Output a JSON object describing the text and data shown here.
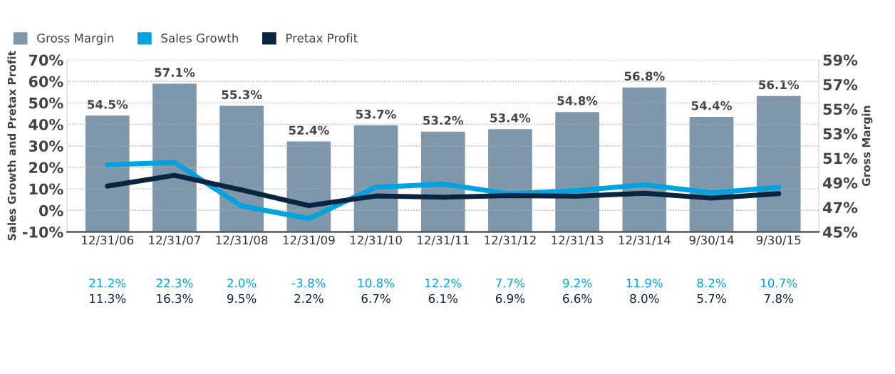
{
  "chart_data": {
    "type": "bar",
    "ylabel": "Sales Growth and Pretax Profit",
    "y2label": "Gross Margin",
    "categories": [
      "12/31/06",
      "12/31/07",
      "12/31/08",
      "12/31/09",
      "12/31/10",
      "12/31/11",
      "12/31/12",
      "12/31/13",
      "12/31/14",
      "9/30/14",
      "9/30/15"
    ],
    "series": [
      {
        "name": "Gross Margin",
        "axis": "y2",
        "color": "#7f97aa",
        "values": [
          54.5,
          57.1,
          55.3,
          52.4,
          53.7,
          53.2,
          53.4,
          54.8,
          56.8,
          54.4,
          56.1
        ],
        "value_labels": [
          "54.5%",
          "57.1%",
          "55.3%",
          "52.4%",
          "53.7%",
          "53.2%",
          "53.4%",
          "54.8%",
          "56.8%",
          "54.4%",
          "56.1%"
        ]
      },
      {
        "name": "Sales Growth",
        "type": "line",
        "color": "#00a3e0",
        "values": [
          21.2,
          22.3,
          2.0,
          -3.8,
          10.8,
          12.2,
          7.7,
          9.2,
          11.9,
          8.2,
          10.7
        ],
        "value_labels": [
          "21.2%",
          "22.3%",
          "2.0%",
          "-3.8%",
          "10.8%",
          "12.2%",
          "7.7%",
          "9.2%",
          "11.9%",
          "8.2%",
          "10.7%"
        ]
      },
      {
        "name": "Pretax Profit",
        "type": "line",
        "color": "#0a2540",
        "values": [
          11.3,
          16.3,
          9.5,
          2.2,
          6.7,
          6.1,
          6.9,
          6.6,
          8.0,
          5.7,
          7.8
        ],
        "value_labels": [
          "11.3%",
          "16.3%",
          "9.5%",
          "2.2%",
          "6.7%",
          "6.1%",
          "6.9%",
          "6.6%",
          "8.0%",
          "5.7%",
          "7.8%"
        ]
      }
    ],
    "ylim": [
      -10,
      70
    ],
    "yticks": [
      {
        "value": -10,
        "label": "-10%"
      },
      {
        "value": 0,
        "label": "0%"
      },
      {
        "value": 10,
        "label": "10%"
      },
      {
        "value": 20,
        "label": "20%"
      },
      {
        "value": 30,
        "label": "30%"
      },
      {
        "value": 40,
        "label": "40%"
      },
      {
        "value": 50,
        "label": "50%"
      },
      {
        "value": 60,
        "label": "60%"
      },
      {
        "value": 70,
        "label": "70%"
      }
    ],
    "y2lim": [
      45,
      59
    ],
    "y2ticks": [
      {
        "value": 45,
        "label": "45%"
      },
      {
        "value": 47,
        "label": "47%"
      },
      {
        "value": 49,
        "label": "49%"
      },
      {
        "value": 51,
        "label": "51%"
      },
      {
        "value": 53,
        "label": "53%"
      },
      {
        "value": 55,
        "label": "55%"
      },
      {
        "value": 57,
        "label": "57%"
      },
      {
        "value": 59,
        "label": "59%"
      }
    ],
    "grid": "y",
    "legend": "top left",
    "line_style": "solid",
    "marker": "none"
  }
}
